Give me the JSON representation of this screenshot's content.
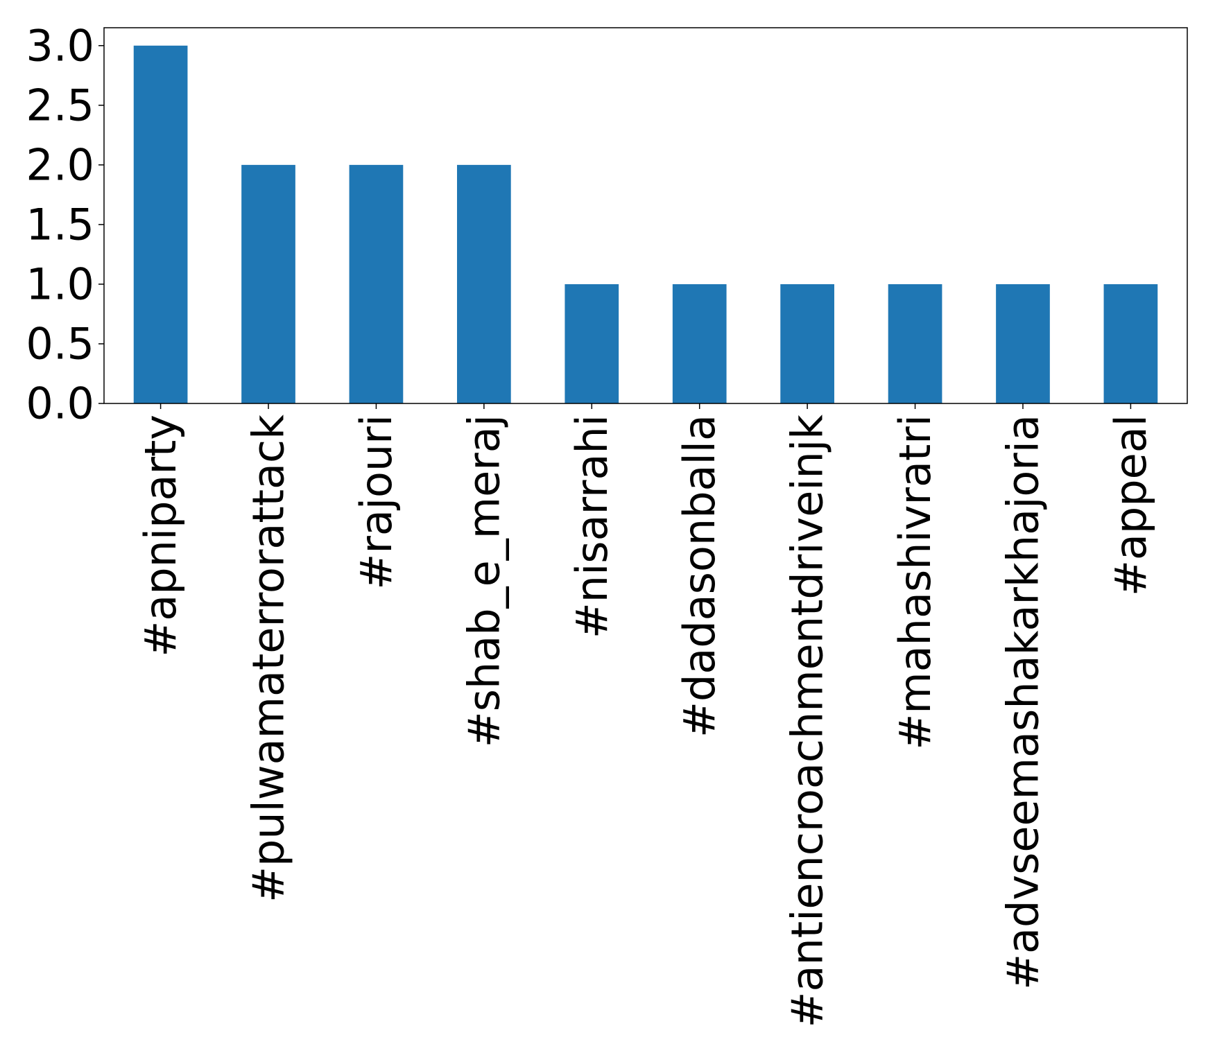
{
  "chart_data": {
    "type": "bar",
    "title": "",
    "xlabel": "",
    "ylabel": "",
    "categories": [
      "#apniparty",
      "#pulwamaterrorattack",
      "#rajouri",
      "#shab_e_meraj",
      "#nisarrahi",
      "#dadasonballa",
      "#antiencroachmentdriveinjk",
      "#mahashivratri",
      "#advseemashakarkhajoria",
      "#appeal"
    ],
    "values": [
      3,
      2,
      2,
      2,
      1,
      1,
      1,
      1,
      1,
      1
    ],
    "ylim": [
      0,
      3.15
    ],
    "yticks": [
      0.0,
      0.5,
      1.0,
      1.5,
      2.0,
      2.5,
      3.0
    ],
    "ytick_labels": [
      "0.0",
      "0.5",
      "1.0",
      "1.5",
      "2.0",
      "2.5",
      "3.0"
    ],
    "bar_color": "#1f77b4",
    "grid": false,
    "legend": "none"
  }
}
